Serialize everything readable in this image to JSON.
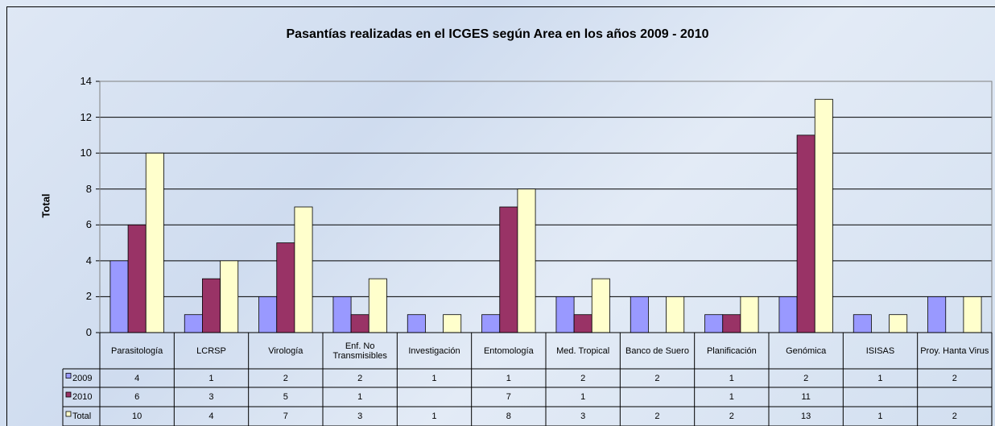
{
  "chart_data": {
    "type": "bar",
    "title": "Pasantías realizadas en el ICGES según Area en los años 2009 - 2010",
    "y_label": "Total",
    "categories": [
      "Parasitología",
      "LCRSP",
      "Virología",
      "Enf. No Transmisibles",
      "Investigación",
      "Entomología",
      "Med. Tropical",
      "Banco de Suero",
      "Planificación",
      "Genómica",
      "ISISAS",
      "Proy. Hanta Virus"
    ],
    "series": [
      {
        "name": "2009",
        "color": "#9999ff",
        "values": [
          4,
          1,
          2,
          2,
          1,
          1,
          2,
          2,
          1,
          2,
          1,
          2
        ]
      },
      {
        "name": "2010",
        "color": "#993366",
        "values": [
          6,
          3,
          5,
          1,
          null,
          7,
          1,
          null,
          1,
          11,
          null,
          null
        ]
      },
      {
        "name": "Total",
        "color": "#ffffcc",
        "values": [
          10,
          4,
          7,
          3,
          1,
          8,
          3,
          2,
          2,
          13,
          1,
          2
        ]
      }
    ],
    "ylim": [
      0,
      14
    ],
    "yticks": [
      0,
      2,
      4,
      6,
      8,
      10,
      12,
      14
    ],
    "grid": true,
    "data_table": true
  }
}
